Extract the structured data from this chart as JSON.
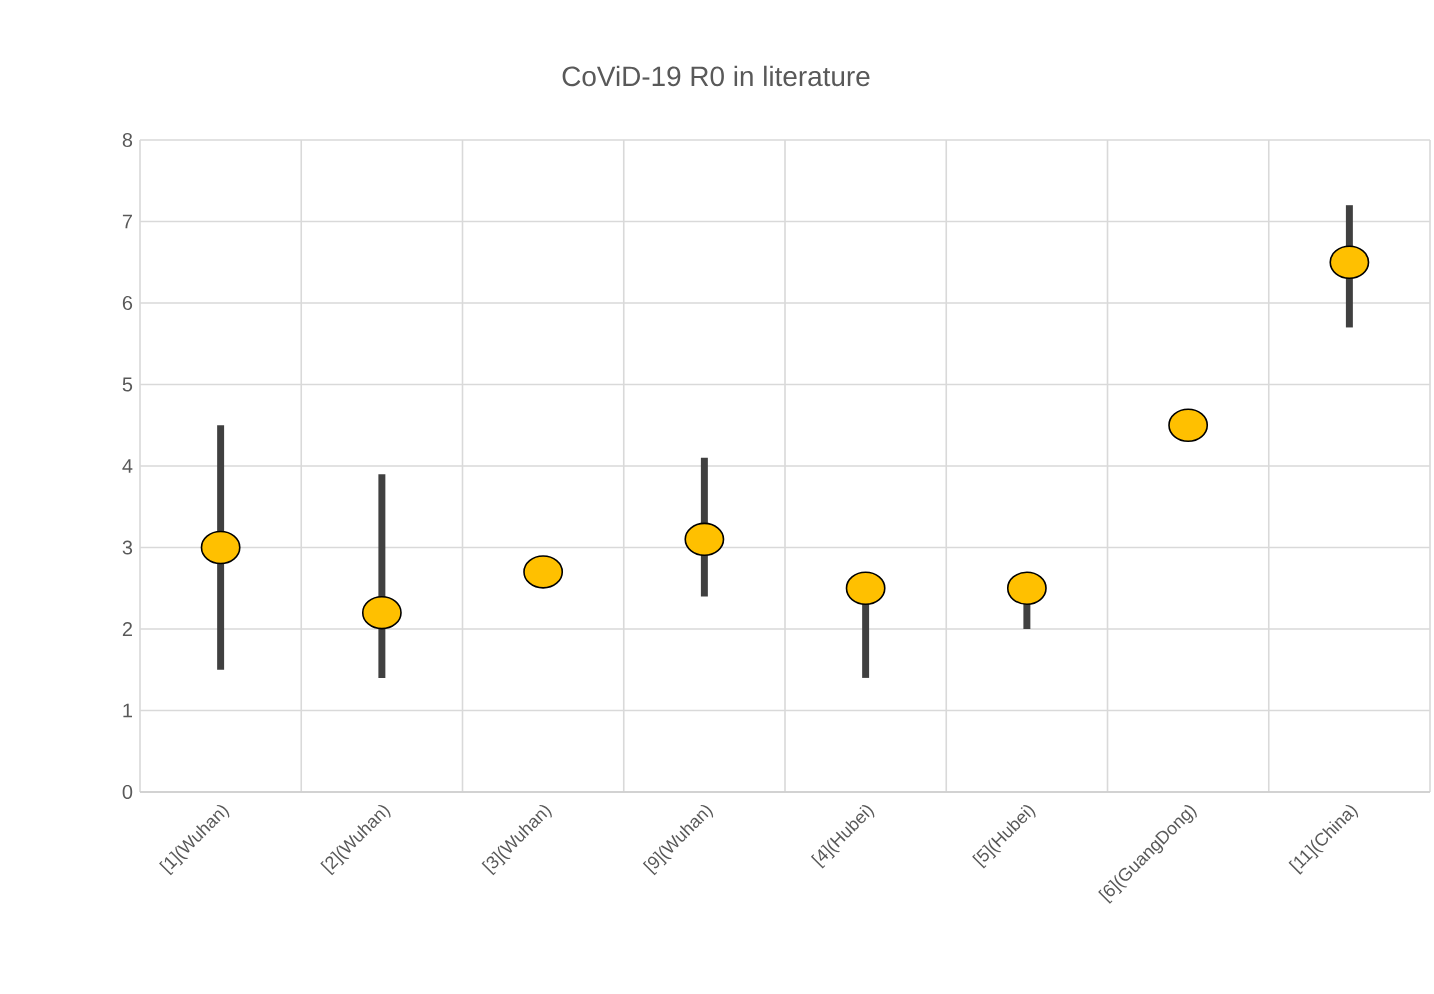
{
  "chart_data": {
    "type": "scatter",
    "title": "CoViD-19 R0 in literature",
    "categories": [
      "[1](Wuhan)",
      "[2](Wuhan)",
      "[3](Wuhan)",
      "[9](Wuhan)",
      "[4](Hubei)",
      "[5](Hubei)",
      "[6](GuangDong)",
      "[11](China)"
    ],
    "values": [
      3.0,
      2.2,
      2.7,
      3.1,
      2.5,
      2.5,
      4.5,
      6.5
    ],
    "errors": [
      [
        1.5,
        4.5
      ],
      [
        1.4,
        3.9
      ],
      null,
      [
        2.4,
        4.1
      ],
      [
        1.4,
        2.5
      ],
      [
        2.0,
        2.5
      ],
      null,
      [
        5.7,
        7.2
      ]
    ],
    "color": "#ffc000",
    "ylim": [
      0,
      8
    ],
    "yticks": [
      0,
      1,
      2,
      3,
      4,
      5,
      6,
      7,
      8
    ],
    "grid": true,
    "marker": "circle"
  }
}
